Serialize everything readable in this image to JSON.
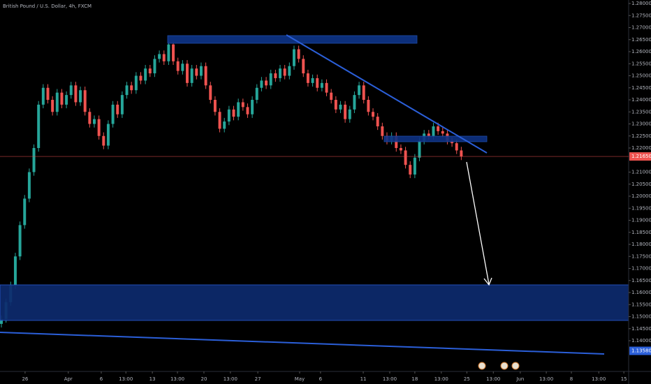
{
  "chart_data": {
    "type": "candlestick",
    "title": "British Pound / U.S. Dollar, 4h, FXCM",
    "up_color": "#26a69a",
    "down_color": "#ef5350",
    "grid": false,
    "ylim": [
      1.12928,
      1.28145
    ],
    "xlim": [
      -0.3,
      135.03
    ],
    "yticks": [
      {
        "value": 1.28,
        "label": "1.28000"
      },
      {
        "value": 1.275,
        "label": "1.27500"
      },
      {
        "value": 1.27,
        "label": "1.27000"
      },
      {
        "value": 1.265,
        "label": "1.26500"
      },
      {
        "value": 1.26,
        "label": "1.26000"
      },
      {
        "value": 1.255,
        "label": "1.25500"
      },
      {
        "value": 1.25,
        "label": "1.25000"
      },
      {
        "value": 1.245,
        "label": "1.24500"
      },
      {
        "value": 1.24,
        "label": "1.24000"
      },
      {
        "value": 1.235,
        "label": "1.23500"
      },
      {
        "value": 1.23,
        "label": "1.23000"
      },
      {
        "value": 1.225,
        "label": "1.22500"
      },
      {
        "value": 1.22,
        "label": "1.22000"
      },
      {
        "value": 1.21,
        "label": "1.21000"
      },
      {
        "value": 1.205,
        "label": "1.20500"
      },
      {
        "value": 1.2,
        "label": "1.20000"
      },
      {
        "value": 1.195,
        "label": "1.19500"
      },
      {
        "value": 1.19,
        "label": "1.19000"
      },
      {
        "value": 1.185,
        "label": "1.18500"
      },
      {
        "value": 1.18,
        "label": "1.18000"
      },
      {
        "value": 1.175,
        "label": "1.17500"
      },
      {
        "value": 1.17,
        "label": "1.17000"
      },
      {
        "value": 1.165,
        "label": "1.16500"
      },
      {
        "value": 1.16,
        "label": "1.16000"
      },
      {
        "value": 1.155,
        "label": "1.15500"
      },
      {
        "value": 1.15,
        "label": "1.15000"
      },
      {
        "value": 1.145,
        "label": "1.14500"
      },
      {
        "value": 1.14,
        "label": "1.14000"
      }
    ],
    "xticks": [
      {
        "value": 5.1,
        "label": "26"
      },
      {
        "value": 14.4,
        "label": "Apr"
      },
      {
        "value": 21.5,
        "label": "6"
      },
      {
        "value": 26.8,
        "label": "13:00"
      },
      {
        "value": 32.5,
        "label": "13"
      },
      {
        "value": 37.9,
        "label": "13:00"
      },
      {
        "value": 43.6,
        "label": "20"
      },
      {
        "value": 49.3,
        "label": "13:00"
      },
      {
        "value": 55.2,
        "label": "27"
      },
      {
        "value": 64.2,
        "label": "May"
      },
      {
        "value": 68.7,
        "label": "6"
      },
      {
        "value": 77.9,
        "label": "11"
      },
      {
        "value": 83.6,
        "label": "13:00"
      },
      {
        "value": 89.0,
        "label": "18"
      },
      {
        "value": 94.7,
        "label": "13:00"
      },
      {
        "value": 100.2,
        "label": "25"
      },
      {
        "value": 105.9,
        "label": "13:00"
      },
      {
        "value": 111.7,
        "label": "Jun"
      },
      {
        "value": 117.3,
        "label": "13:00"
      },
      {
        "value": 122.7,
        "label": "8"
      },
      {
        "value": 128.6,
        "label": "13:00"
      },
      {
        "value": 134.0,
        "label": "15"
      }
    ],
    "last_price": {
      "value": 1.2165,
      "label": "1.21650"
    },
    "trendline_price": {
      "value": 1.1358,
      "label": "1.13580"
    },
    "ohlc": [
      [
        1.147,
        1.1505,
        1.1455,
        1.149
      ],
      [
        1.149,
        1.1575,
        1.1475,
        1.156
      ],
      [
        1.156,
        1.1645,
        1.1545,
        1.163
      ],
      [
        1.163,
        1.1765,
        1.1615,
        1.175
      ],
      [
        1.175,
        1.1895,
        1.1735,
        1.188
      ],
      [
        1.188,
        1.2005,
        1.1865,
        1.199
      ],
      [
        1.199,
        1.2115,
        1.1975,
        1.21
      ],
      [
        1.21,
        1.2215,
        1.2085,
        1.22
      ],
      [
        1.22,
        1.2395,
        1.2185,
        1.238
      ],
      [
        1.238,
        1.2465,
        1.2365,
        1.245
      ],
      [
        1.245,
        1.2465,
        1.2385,
        1.24
      ],
      [
        1.24,
        1.2415,
        1.2335,
        1.235
      ],
      [
        1.235,
        1.2445,
        1.2335,
        1.243
      ],
      [
        1.243,
        1.2445,
        1.2365,
        1.238
      ],
      [
        1.238,
        1.2435,
        1.2365,
        1.242
      ],
      [
        1.242,
        1.2475,
        1.2405,
        1.246
      ],
      [
        1.246,
        1.2475,
        1.2375,
        1.239
      ],
      [
        1.239,
        1.2455,
        1.2375,
        1.244
      ],
      [
        1.244,
        1.2455,
        1.2335,
        1.235
      ],
      [
        1.235,
        1.2365,
        1.2285,
        1.23
      ],
      [
        1.23,
        1.2335,
        1.2285,
        1.232
      ],
      [
        1.232,
        1.2335,
        1.2235,
        1.225
      ],
      [
        1.225,
        1.2265,
        1.2195,
        1.221
      ],
      [
        1.221,
        1.2315,
        1.2195,
        1.23
      ],
      [
        1.23,
        1.2395,
        1.2285,
        1.238
      ],
      [
        1.238,
        1.2395,
        1.2325,
        1.234
      ],
      [
        1.234,
        1.2435,
        1.2325,
        1.242
      ],
      [
        1.242,
        1.2475,
        1.2405,
        1.246
      ],
      [
        1.246,
        1.2475,
        1.2425,
        1.244
      ],
      [
        1.244,
        1.2515,
        1.2425,
        1.25
      ],
      [
        1.25,
        1.2515,
        1.2465,
        1.248
      ],
      [
        1.248,
        1.2545,
        1.2465,
        1.253
      ],
      [
        1.253,
        1.2545,
        1.2495,
        1.251
      ],
      [
        1.251,
        1.2585,
        1.2495,
        1.257
      ],
      [
        1.257,
        1.2605,
        1.2555,
        1.259
      ],
      [
        1.259,
        1.2605,
        1.2545,
        1.256
      ],
      [
        1.256,
        1.2645,
        1.2545,
        1.263
      ],
      [
        1.263,
        1.2645,
        1.2545,
        1.256
      ],
      [
        1.256,
        1.2575,
        1.2505,
        1.252
      ],
      [
        1.252,
        1.2565,
        1.2505,
        1.255
      ],
      [
        1.255,
        1.2565,
        1.2455,
        1.247
      ],
      [
        1.247,
        1.2545,
        1.2455,
        1.253
      ],
      [
        1.253,
        1.2545,
        1.2485,
        1.25
      ],
      [
        1.25,
        1.2555,
        1.2485,
        1.254
      ],
      [
        1.254,
        1.2555,
        1.2445,
        1.246
      ],
      [
        1.246,
        1.2475,
        1.2385,
        1.24
      ],
      [
        1.24,
        1.2415,
        1.2335,
        1.235
      ],
      [
        1.235,
        1.2365,
        1.2265,
        1.228
      ],
      [
        1.228,
        1.2325,
        1.2265,
        1.231
      ],
      [
        1.231,
        1.2375,
        1.2295,
        1.236
      ],
      [
        1.236,
        1.2375,
        1.2315,
        1.233
      ],
      [
        1.233,
        1.2405,
        1.2315,
        1.239
      ],
      [
        1.239,
        1.2405,
        1.2355,
        1.237
      ],
      [
        1.237,
        1.2385,
        1.2325,
        1.234
      ],
      [
        1.234,
        1.2415,
        1.2325,
        1.24
      ],
      [
        1.24,
        1.2465,
        1.2385,
        1.245
      ],
      [
        1.245,
        1.2495,
        1.2435,
        1.248
      ],
      [
        1.248,
        1.2495,
        1.2445,
        1.246
      ],
      [
        1.246,
        1.2525,
        1.2445,
        1.251
      ],
      [
        1.251,
        1.2525,
        1.2475,
        1.249
      ],
      [
        1.249,
        1.2545,
        1.2475,
        1.253
      ],
      [
        1.253,
        1.2545,
        1.2485,
        1.25
      ],
      [
        1.25,
        1.2555,
        1.2485,
        1.254
      ],
      [
        1.254,
        1.2625,
        1.2525,
        1.261
      ],
      [
        1.261,
        1.2625,
        1.2555,
        1.257
      ],
      [
        1.257,
        1.2585,
        1.2495,
        1.251
      ],
      [
        1.251,
        1.2525,
        1.2455,
        1.247
      ],
      [
        1.247,
        1.2505,
        1.2455,
        1.249
      ],
      [
        1.249,
        1.2505,
        1.2435,
        1.245
      ],
      [
        1.245,
        1.2485,
        1.2435,
        1.247
      ],
      [
        1.247,
        1.2485,
        1.2415,
        1.243
      ],
      [
        1.243,
        1.2445,
        1.2385,
        1.24
      ],
      [
        1.24,
        1.2415,
        1.2345,
        1.236
      ],
      [
        1.236,
        1.2395,
        1.2345,
        1.238
      ],
      [
        1.238,
        1.2395,
        1.2305,
        1.232
      ],
      [
        1.232,
        1.2375,
        1.2305,
        1.236
      ],
      [
        1.236,
        1.2435,
        1.2345,
        1.242
      ],
      [
        1.242,
        1.2475,
        1.2405,
        1.246
      ],
      [
        1.246,
        1.2475,
        1.2385,
        1.24
      ],
      [
        1.24,
        1.2415,
        1.2335,
        1.235
      ],
      [
        1.235,
        1.2365,
        1.2315,
        1.233
      ],
      [
        1.233,
        1.2345,
        1.2275,
        1.229
      ],
      [
        1.229,
        1.2305,
        1.2235,
        1.225
      ],
      [
        1.225,
        1.2265,
        1.2215,
        1.223
      ],
      [
        1.223,
        1.2265,
        1.2215,
        1.225
      ],
      [
        1.225,
        1.2265,
        1.2185,
        1.22
      ],
      [
        1.22,
        1.2215,
        1.2175,
        1.219
      ],
      [
        1.219,
        1.2205,
        1.2115,
        1.213
      ],
      [
        1.213,
        1.2145,
        1.2075,
        1.209
      ],
      [
        1.209,
        1.2175,
        1.2075,
        1.216
      ],
      [
        1.216,
        1.2245,
        1.2145,
        1.223
      ],
      [
        1.223,
        1.2275,
        1.2215,
        1.226
      ],
      [
        1.226,
        1.2275,
        1.2235,
        1.225
      ],
      [
        1.225,
        1.2305,
        1.2235,
        1.229
      ],
      [
        1.229,
        1.2305,
        1.2255,
        1.227
      ],
      [
        1.227,
        1.2285,
        1.2245,
        1.226
      ],
      [
        1.226,
        1.2275,
        1.2215,
        1.223
      ],
      [
        1.223,
        1.2245,
        1.2205,
        1.222
      ],
      [
        1.222,
        1.2235,
        1.2175,
        1.219
      ],
      [
        1.219,
        1.2205,
        1.215,
        1.2165
      ]
    ]
  }
}
